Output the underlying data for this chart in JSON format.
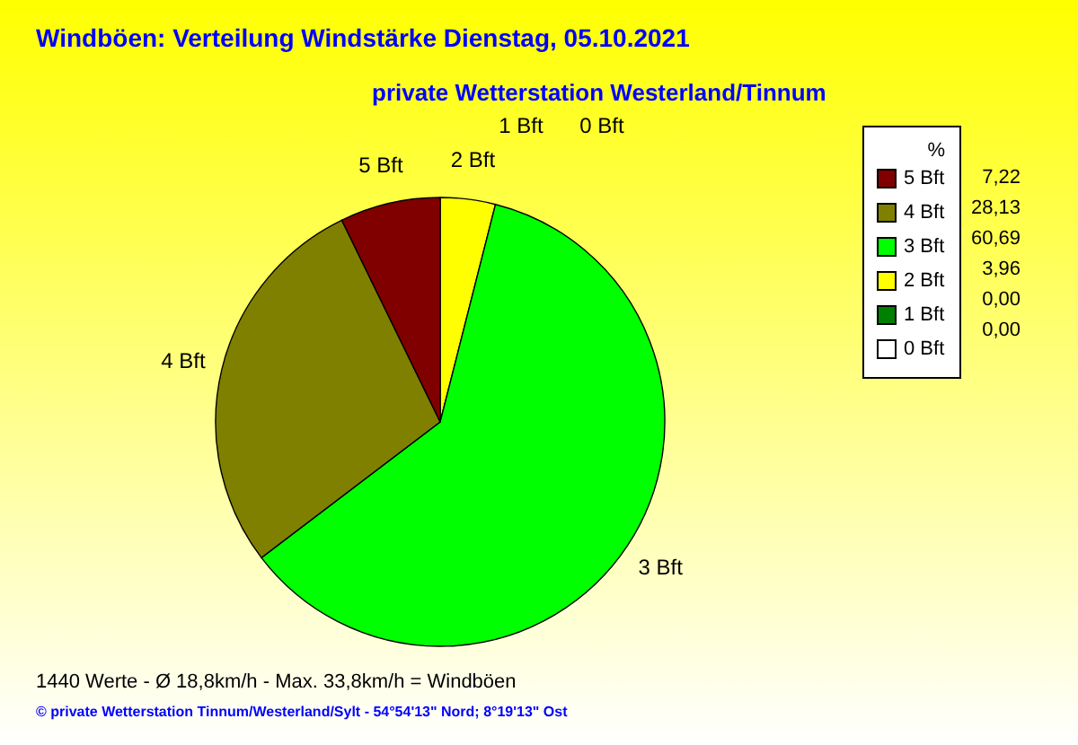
{
  "chart_data": {
    "type": "pie",
    "title": "Windböen: Verteilung Windstärke  Dienstag, 05.10.2021",
    "subtitle": "private Wetterstation Westerland/Tinnum",
    "categories": [
      "5 Bft",
      "4 Bft",
      "3 Bft",
      "2 Bft",
      "1 Bft",
      "0 Bft"
    ],
    "values": [
      7.22,
      28.13,
      60.69,
      3.96,
      0.0,
      0.0
    ],
    "value_labels": [
      "7,22",
      "28,13",
      "60,69",
      "3,96",
      "0,00",
      "0,00"
    ],
    "colors": [
      "#800000",
      "#808000",
      "#00ff00",
      "#ffff00",
      "#008000",
      "#ffffff"
    ],
    "legend_title": "%",
    "legend": "top right",
    "annotations": [
      "1440 Werte   -   Ø 18,8km/h  -  Max. 33,8km/h = Windböen",
      "© private Wetterstation Tinnum/Westerland/Sylt  -  54°54'13\" Nord; 8°19'13\" Ost"
    ]
  }
}
